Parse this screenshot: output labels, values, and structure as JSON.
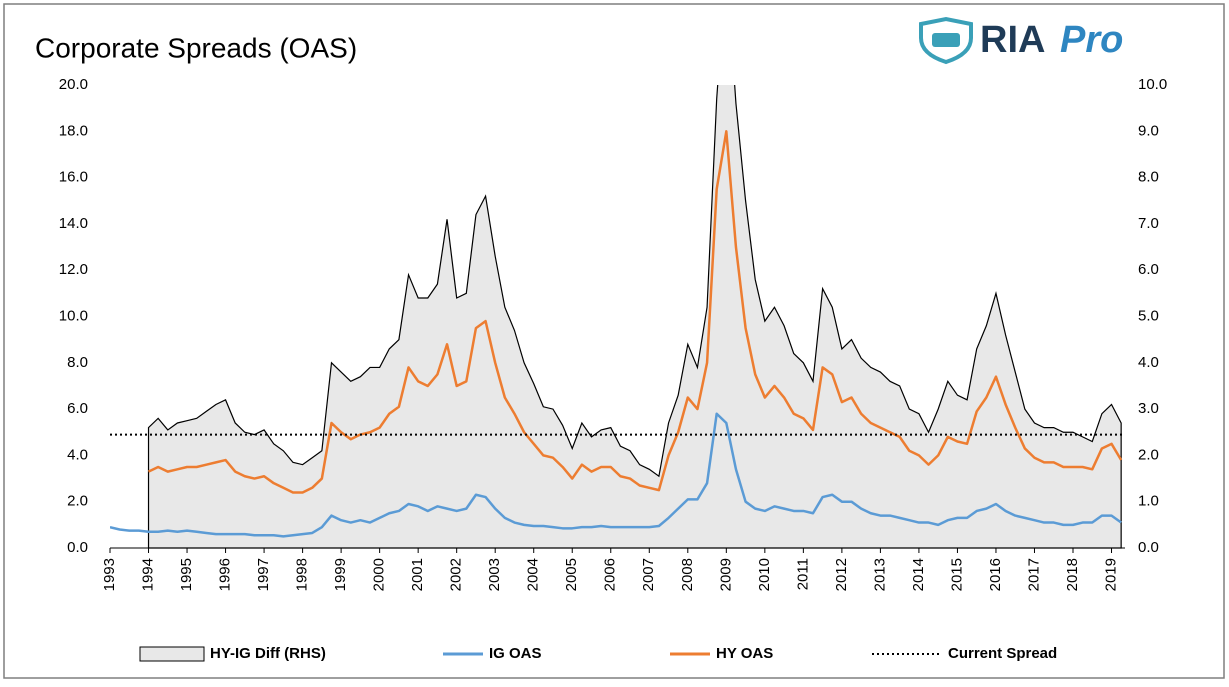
{
  "logo": {
    "name": "RIA",
    "suffix": "Pro"
  },
  "chart_data": {
    "type": "line",
    "title": "Corporate Spreads (OAS)",
    "x": [
      1993,
      1993.25,
      1993.5,
      1993.75,
      1994,
      1994.25,
      1994.5,
      1994.75,
      1995,
      1995.25,
      1995.5,
      1995.75,
      1996,
      1996.25,
      1996.5,
      1996.75,
      1997,
      1997.25,
      1997.5,
      1997.75,
      1998,
      1998.25,
      1998.5,
      1998.75,
      1999,
      1999.25,
      1999.5,
      1999.75,
      2000,
      2000.25,
      2000.5,
      2000.75,
      2001,
      2001.25,
      2001.5,
      2001.75,
      2002,
      2002.25,
      2002.5,
      2002.75,
      2003,
      2003.25,
      2003.5,
      2003.75,
      2004,
      2004.25,
      2004.5,
      2004.75,
      2005,
      2005.25,
      2005.5,
      2005.75,
      2006,
      2006.25,
      2006.5,
      2006.75,
      2007,
      2007.25,
      2007.5,
      2007.75,
      2008,
      2008.25,
      2008.5,
      2008.75,
      2009,
      2009.25,
      2009.5,
      2009.75,
      2010,
      2010.25,
      2010.5,
      2010.75,
      2011,
      2011.25,
      2011.5,
      2011.75,
      2012,
      2012.25,
      2012.5,
      2012.75,
      2013,
      2013.25,
      2013.5,
      2013.75,
      2014,
      2014.25,
      2014.5,
      2014.75,
      2015,
      2015.25,
      2015.5,
      2015.75,
      2016,
      2016.25,
      2016.5,
      2016.75,
      2017,
      2017.25,
      2017.5,
      2017.75,
      2018,
      2018.25,
      2018.5,
      2018.75,
      2019,
      2019.25
    ],
    "series": [
      {
        "name": "HY-IG Diff (RHS)",
        "type": "area",
        "axis": "y2",
        "color": "#000000",
        "fill": "#e8e8e8",
        "values": [
          null,
          null,
          null,
          null,
          2.6,
          2.8,
          2.55,
          2.7,
          2.75,
          2.8,
          2.95,
          3.1,
          3.2,
          2.7,
          2.5,
          2.45,
          2.55,
          2.25,
          2.1,
          1.85,
          1.8,
          1.95,
          2.1,
          4.0,
          3.8,
          3.6,
          3.7,
          3.9,
          3.9,
          4.3,
          4.5,
          5.9,
          5.4,
          5.4,
          5.7,
          7.1,
          5.4,
          5.5,
          7.2,
          7.6,
          6.3,
          5.2,
          4.7,
          4.0,
          3.55,
          3.05,
          3.0,
          2.65,
          2.15,
          2.7,
          2.4,
          2.55,
          2.6,
          2.2,
          2.1,
          1.8,
          1.7,
          1.55,
          2.7,
          3.3,
          4.4,
          3.9,
          5.2,
          9.7,
          12.6,
          9.6,
          7.5,
          5.8,
          4.9,
          5.2,
          4.8,
          4.2,
          4.0,
          3.6,
          5.6,
          5.2,
          4.3,
          4.5,
          4.1,
          3.9,
          3.8,
          3.6,
          3.5,
          3.0,
          2.9,
          2.5,
          3.0,
          3.6,
          3.3,
          3.2,
          4.3,
          4.8,
          5.5,
          4.6,
          3.8,
          3.0,
          2.7,
          2.6,
          2.6,
          2.5,
          2.5,
          2.4,
          2.3,
          2.9,
          3.1,
          2.7
        ]
      },
      {
        "name": "IG OAS",
        "type": "line",
        "color": "#5b9bd5",
        "values": [
          0.9,
          0.8,
          0.75,
          0.75,
          0.7,
          0.7,
          0.75,
          0.7,
          0.75,
          0.7,
          0.65,
          0.6,
          0.6,
          0.6,
          0.6,
          0.55,
          0.55,
          0.55,
          0.5,
          0.55,
          0.6,
          0.65,
          0.9,
          1.4,
          1.2,
          1.1,
          1.2,
          1.1,
          1.3,
          1.5,
          1.6,
          1.9,
          1.8,
          1.6,
          1.8,
          1.7,
          1.6,
          1.7,
          2.3,
          2.2,
          1.7,
          1.3,
          1.1,
          1.0,
          0.95,
          0.95,
          0.9,
          0.85,
          0.85,
          0.9,
          0.9,
          0.95,
          0.9,
          0.9,
          0.9,
          0.9,
          0.9,
          0.95,
          1.3,
          1.7,
          2.1,
          2.1,
          2.8,
          5.8,
          5.4,
          3.4,
          2.0,
          1.7,
          1.6,
          1.8,
          1.7,
          1.6,
          1.6,
          1.5,
          2.2,
          2.3,
          2.0,
          2.0,
          1.7,
          1.5,
          1.4,
          1.4,
          1.3,
          1.2,
          1.1,
          1.1,
          1.0,
          1.2,
          1.3,
          1.3,
          1.6,
          1.7,
          1.9,
          1.6,
          1.4,
          1.3,
          1.2,
          1.1,
          1.1,
          1.0,
          1.0,
          1.1,
          1.1,
          1.4,
          1.4,
          1.1
        ]
      },
      {
        "name": "HY OAS",
        "type": "line",
        "color": "#ed7d31",
        "values": [
          null,
          null,
          null,
          null,
          3.3,
          3.5,
          3.3,
          3.4,
          3.5,
          3.5,
          3.6,
          3.7,
          3.8,
          3.3,
          3.1,
          3.0,
          3.1,
          2.8,
          2.6,
          2.4,
          2.4,
          2.6,
          3.0,
          5.4,
          5.0,
          4.7,
          4.9,
          5.0,
          5.2,
          5.8,
          6.1,
          7.8,
          7.2,
          7.0,
          7.5,
          8.8,
          7.0,
          7.2,
          9.5,
          9.8,
          8.0,
          6.5,
          5.8,
          5.0,
          4.5,
          4.0,
          3.9,
          3.5,
          3.0,
          3.6,
          3.3,
          3.5,
          3.5,
          3.1,
          3.0,
          2.7,
          2.6,
          2.5,
          4.0,
          5.0,
          6.5,
          6.0,
          8.0,
          15.5,
          18.0,
          13.0,
          9.5,
          7.5,
          6.5,
          7.0,
          6.5,
          5.8,
          5.6,
          5.1,
          7.8,
          7.5,
          6.3,
          6.5,
          5.8,
          5.4,
          5.2,
          5.0,
          4.8,
          4.2,
          4.0,
          3.6,
          4.0,
          4.8,
          4.6,
          4.5,
          5.9,
          6.5,
          7.4,
          6.2,
          5.2,
          4.3,
          3.9,
          3.7,
          3.7,
          3.5,
          3.5,
          3.5,
          3.4,
          4.3,
          4.5,
          3.8
        ]
      }
    ],
    "reference_lines": [
      {
        "name": "Current Spread",
        "value": 4.9,
        "color": "#000000",
        "dash": "dotted"
      }
    ],
    "xlim": [
      1993,
      2019.35
    ],
    "xticks": [
      1993,
      1994,
      1995,
      1996,
      1997,
      1998,
      1999,
      2000,
      2001,
      2002,
      2003,
      2004,
      2005,
      2006,
      2007,
      2008,
      2009,
      2010,
      2011,
      2012,
      2013,
      2014,
      2015,
      2016,
      2017,
      2018,
      2019
    ],
    "ylim": [
      0,
      20
    ],
    "yticks": [
      {
        "value": 0,
        "label": "0.0"
      },
      {
        "value": 2,
        "label": "2.0"
      },
      {
        "value": 4,
        "label": "4.0"
      },
      {
        "value": 6,
        "label": "6.0"
      },
      {
        "value": 8,
        "label": "8.0"
      },
      {
        "value": 10,
        "label": "10.0"
      },
      {
        "value": 12,
        "label": "12.0"
      },
      {
        "value": 14,
        "label": "14.0"
      },
      {
        "value": 16,
        "label": "16.0"
      },
      {
        "value": 18,
        "label": "18.0"
      },
      {
        "value": 20,
        "label": "20.0"
      }
    ],
    "y2lim": [
      0,
      10
    ],
    "y2ticks": [
      {
        "value": 0,
        "label": "0.0"
      },
      {
        "value": 1,
        "label": "1.0"
      },
      {
        "value": 2,
        "label": "2.0"
      },
      {
        "value": 3,
        "label": "3.0"
      },
      {
        "value": 4,
        "label": "4.0"
      },
      {
        "value": 5,
        "label": "5.0"
      },
      {
        "value": 6,
        "label": "6.0"
      },
      {
        "value": 7,
        "label": "7.0"
      },
      {
        "value": 8,
        "label": "8.0"
      },
      {
        "value": 9,
        "label": "9.0"
      },
      {
        "value": 10,
        "label": "10.0"
      }
    ],
    "grid": false,
    "legend": "bottom"
  }
}
